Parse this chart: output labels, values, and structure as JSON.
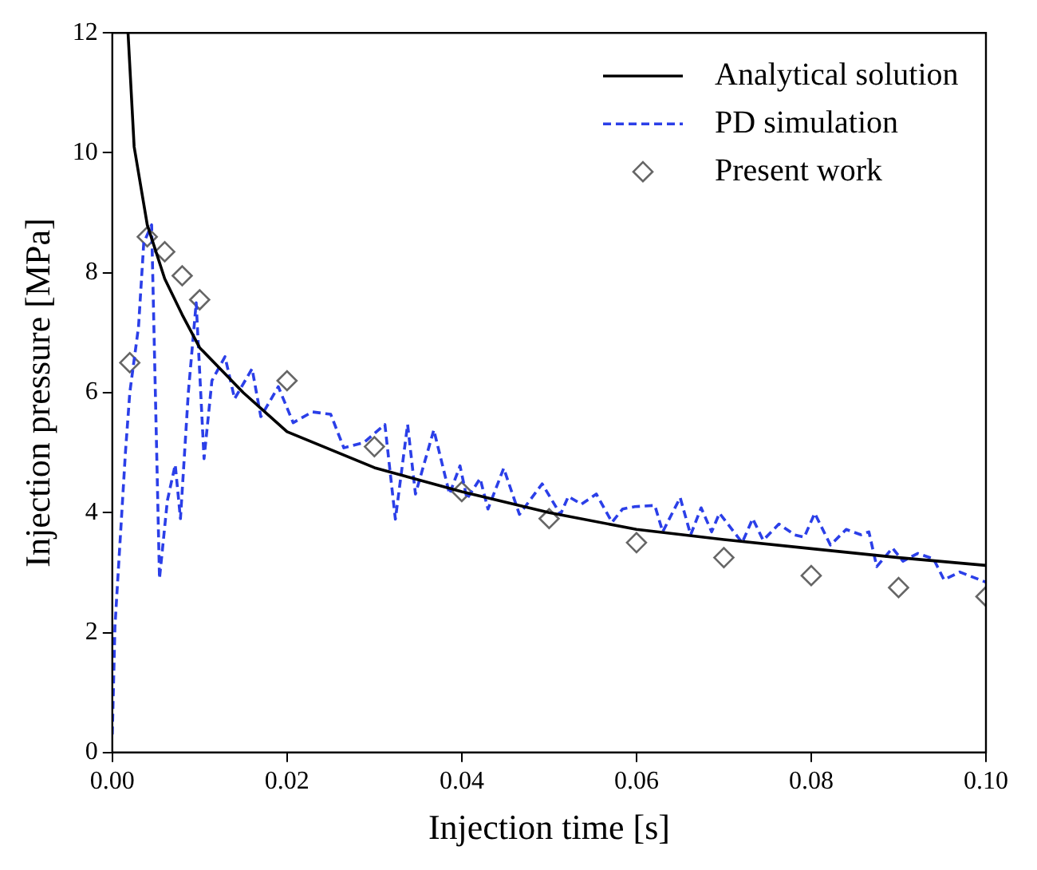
{
  "chart_data": {
    "type": "line",
    "xlabel": "Injection time [s]",
    "ylabel": "Injection pressure [MPa]",
    "xlim": [
      0,
      0.1
    ],
    "xticks": [
      {
        "value": 0,
        "label": "0.00"
      },
      {
        "value": 0.02,
        "label": "0.02"
      },
      {
        "value": 0.04,
        "label": "0.04"
      },
      {
        "value": 0.06,
        "label": "0.06"
      },
      {
        "value": 0.08,
        "label": "0.08"
      },
      {
        "value": 0.1,
        "label": "0.10"
      }
    ],
    "ylim": [
      0,
      12
    ],
    "yticks": [
      0,
      2,
      4,
      6,
      8,
      10,
      12
    ],
    "grid": false,
    "legend": "top right",
    "series": [
      {
        "name": "Analytical solution",
        "type": "line",
        "color": "#000000",
        "line_style": "solid",
        "marker": "none",
        "x": [
          0.0018,
          0.0025,
          0.004,
          0.006,
          0.008,
          0.01,
          0.015,
          0.02,
          0.03,
          0.04,
          0.05,
          0.06,
          0.07,
          0.08,
          0.09,
          0.1
        ],
        "values": [
          12,
          10.1,
          8.8,
          7.9,
          7.3,
          6.75,
          6.0,
          5.35,
          4.75,
          4.35,
          4.0,
          3.72,
          3.55,
          3.4,
          3.25,
          3.12
        ]
      },
      {
        "name": "PD simulation",
        "type": "line",
        "color": "#2b3fe8",
        "line_style": "dashed",
        "marker": "none",
        "x": [
          0,
          0.0003,
          0.0015,
          0.002,
          0.003,
          0.0036,
          0.0045,
          0.0054,
          0.0063,
          0.0072,
          0.0078,
          0.0087,
          0.0096,
          0.0105,
          0.0114,
          0.0129,
          0.014,
          0.016,
          0.017,
          0.019,
          0.0207,
          0.0229,
          0.025,
          0.0265,
          0.0288,
          0.0312,
          0.0324,
          0.0338,
          0.0347,
          0.0368,
          0.0386,
          0.0398,
          0.0406,
          0.0421,
          0.043,
          0.0448,
          0.0466,
          0.0492,
          0.0513,
          0.0522,
          0.0537,
          0.0554,
          0.0572,
          0.0584,
          0.0598,
          0.0621,
          0.063,
          0.065,
          0.0662,
          0.0674,
          0.0686,
          0.0695,
          0.0721,
          0.0733,
          0.0745,
          0.0763,
          0.0781,
          0.0792,
          0.0804,
          0.0822,
          0.084,
          0.0857,
          0.0866,
          0.0875,
          0.0893,
          0.0905,
          0.0922,
          0.094,
          0.0952,
          0.097,
          0.1
        ],
        "values": [
          0.3,
          2.1,
          5,
          6,
          7.1,
          8.5,
          8.8,
          2.9,
          4.2,
          4.8,
          3.9,
          6,
          7.5,
          4.9,
          6.2,
          6.6,
          5.9,
          6.4,
          5.6,
          6.1,
          5.5,
          5.68,
          5.64,
          5.08,
          5.17,
          5.47,
          3.89,
          5.47,
          4.31,
          5.38,
          4.31,
          4.78,
          4.23,
          4.57,
          4.06,
          4.74,
          3.97,
          4.48,
          3.97,
          4.27,
          4.14,
          4.31,
          3.84,
          4.06,
          4.1,
          4.12,
          3.68,
          4.25,
          3.63,
          4.08,
          3.68,
          3.99,
          3.5,
          3.9,
          3.54,
          3.81,
          3.63,
          3.59,
          3.99,
          3.46,
          3.72,
          3.63,
          3.68,
          3.1,
          3.41,
          3.19,
          3.32,
          3.23,
          2.88,
          3.01,
          2.84
        ]
      },
      {
        "name": "Present work",
        "type": "scatter",
        "color": "#666666",
        "marker": "diamond",
        "x": [
          0.002,
          0.004,
          0.006,
          0.008,
          0.01,
          0.02,
          0.03,
          0.04,
          0.05,
          0.06,
          0.07,
          0.08,
          0.09,
          0.1
        ],
        "values": [
          6.5,
          8.6,
          8.35,
          7.95,
          7.55,
          6.2,
          5.1,
          4.35,
          3.9,
          3.5,
          3.25,
          2.95,
          2.75,
          2.6
        ]
      }
    ]
  }
}
